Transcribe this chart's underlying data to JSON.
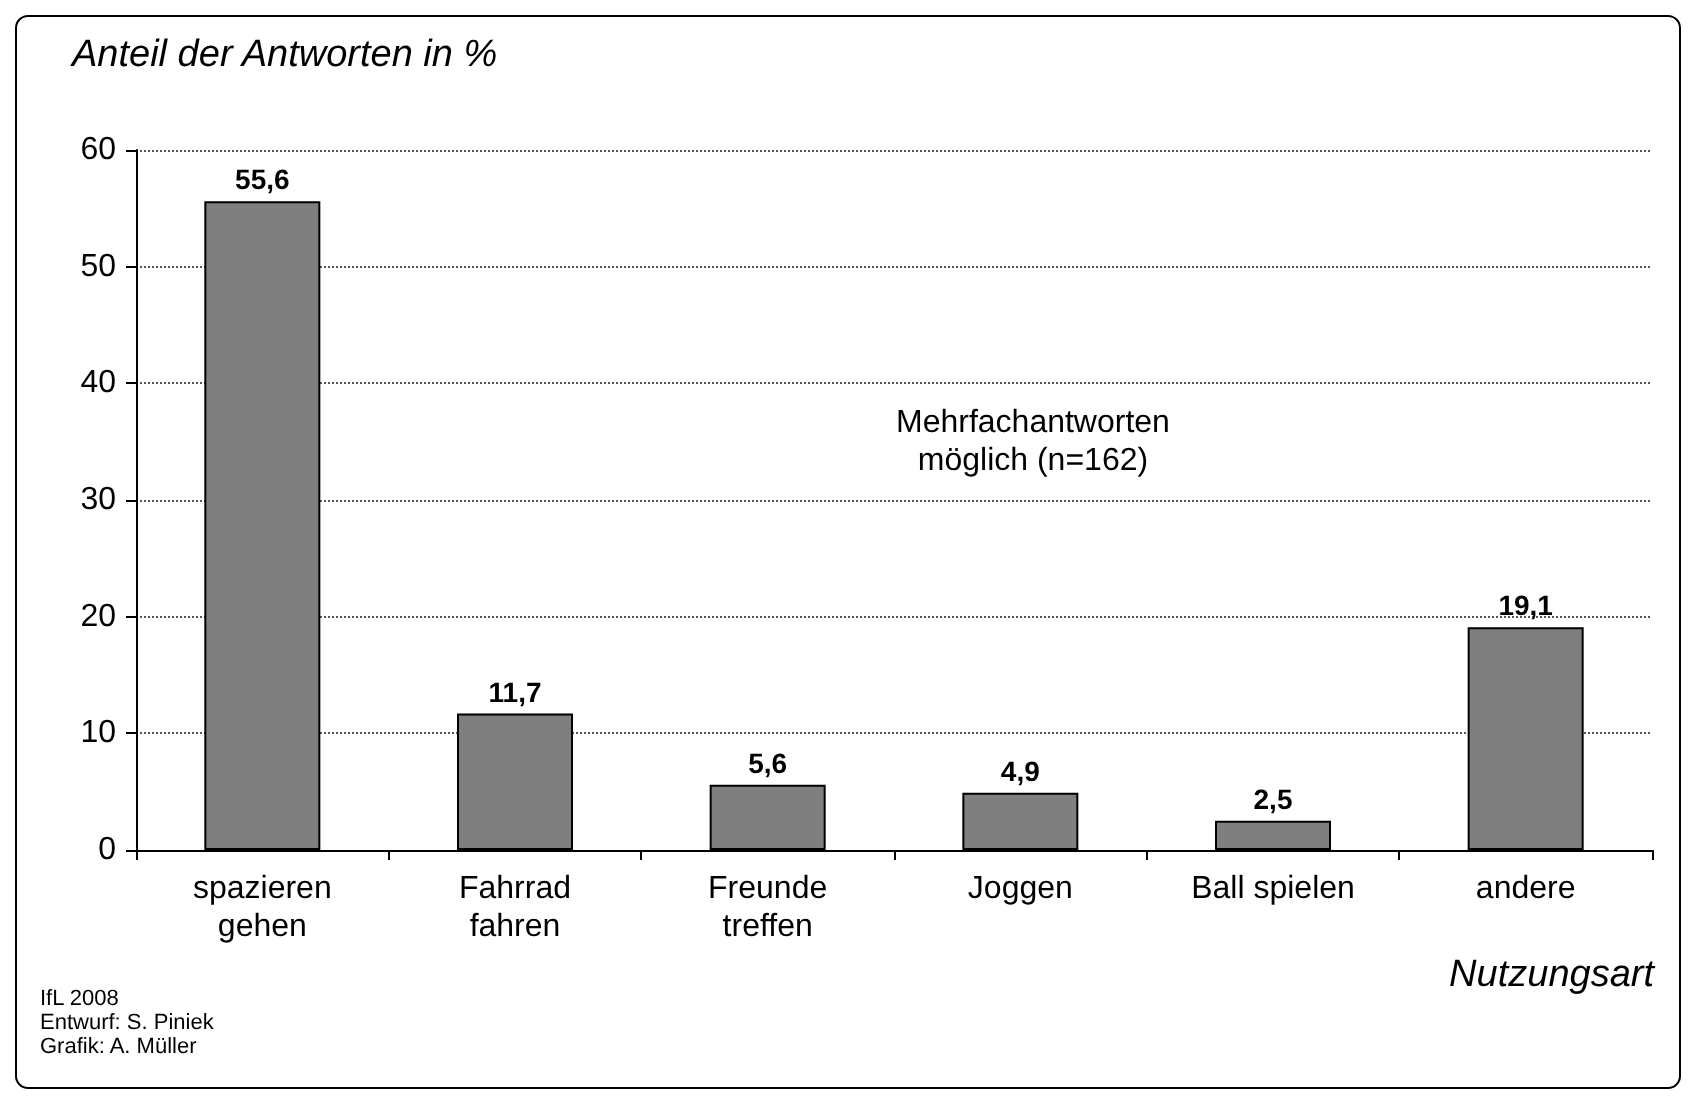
{
  "chart_data": {
    "type": "bar",
    "ylabel": "Anteil der Antworten in %",
    "xlabel": "Nutzungsart",
    "categories": [
      "spazieren\ngehen",
      "Fahrrad\nfahren",
      "Freunde\ntreffen",
      "Joggen",
      "Ball spielen",
      "andere"
    ],
    "values": [
      55.6,
      11.7,
      5.6,
      4.9,
      2.5,
      19.1
    ],
    "value_labels": [
      "55,6",
      "11,7",
      "5,6",
      "4,9",
      "2,5",
      "19,1"
    ],
    "color": "#7f7f7f",
    "ylim": [
      0,
      60
    ],
    "yticks": [
      0,
      10,
      20,
      30,
      40,
      50,
      60
    ],
    "grid": "y",
    "annotations": [
      "Mehrfachantworten\nmöglich (n=162)",
      "IfL 2008",
      "Entwurf: S. Piniek",
      "Grafik: A. Müller"
    ]
  }
}
